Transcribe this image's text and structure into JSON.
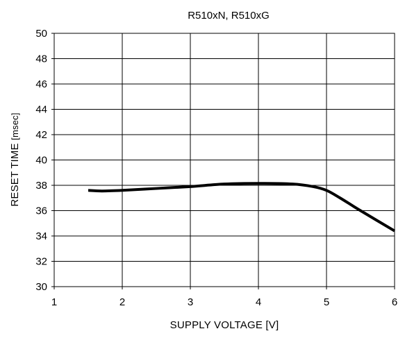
{
  "chart_data": {
    "type": "line",
    "title": "R510xN, R510xG",
    "xlabel": "SUPPLY VOLTAGE [V]",
    "ylabel_main": "RESET TIME ",
    "ylabel_unit": "[msec]",
    "xlim": [
      1,
      6
    ],
    "ylim": [
      30,
      50
    ],
    "x_ticks": [
      "1",
      "2",
      "3",
      "4",
      "5",
      "6"
    ],
    "y_ticks": [
      "30",
      "32",
      "34",
      "36",
      "38",
      "40",
      "42",
      "44",
      "46",
      "48",
      "50"
    ],
    "grid": true,
    "series": [
      {
        "x": [
          1.5,
          1.7,
          2.0,
          2.5,
          3.0,
          3.5,
          4.0,
          4.5,
          4.8,
          5.0,
          5.2,
          5.5,
          6.0
        ],
        "y": [
          37.6,
          37.55,
          37.6,
          37.75,
          37.9,
          38.1,
          38.15,
          38.1,
          37.9,
          37.6,
          37.0,
          36.0,
          34.4
        ]
      }
    ],
    "colors": {
      "line": "#000000",
      "grid": "#000000",
      "background": "#ffffff"
    }
  }
}
